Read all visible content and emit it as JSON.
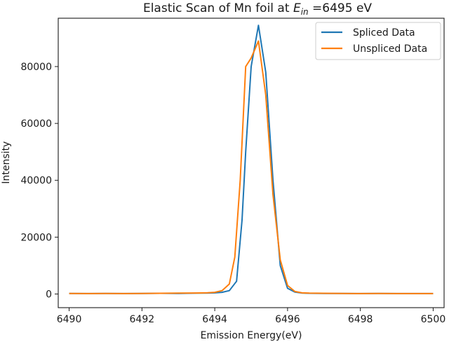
{
  "chart_data": {
    "type": "line",
    "title_main": "Elastic Scan of Mn foil at ",
    "title_var": "E",
    "title_sub": "in",
    "title_tail": " =6495 eV",
    "xlabel": "Emission Energy(eV)",
    "ylabel": "Intensity",
    "xlim": [
      6489.7,
      6500.3
    ],
    "ylim": [
      -4800,
      97000
    ],
    "xticks": [
      6490,
      6492,
      6494,
      6496,
      6498,
      6500
    ],
    "xtick_labels": [
      "6490",
      "6492",
      "6494",
      "6496",
      "6498",
      "6500"
    ],
    "yticks": [
      0,
      20000,
      40000,
      60000,
      80000
    ],
    "ytick_labels": [
      "0",
      "20000",
      "40000",
      "60000",
      "80000"
    ],
    "grid": false,
    "legend_position": "upper right",
    "series": [
      {
        "name": "Spliced Data",
        "color": "#1f77b4",
        "x": [
          6490,
          6490.5,
          6491,
          6491.5,
          6492,
          6492.5,
          6493,
          6493.5,
          6493.8,
          6494,
          6494.2,
          6494.4,
          6494.6,
          6494.75,
          6494.85,
          6495,
          6495.2,
          6495.4,
          6495.6,
          6495.8,
          6496,
          6496.2,
          6496.4,
          6496.6,
          6497,
          6497.5,
          6498,
          6498.5,
          6499,
          6499.5,
          6500
        ],
        "y": [
          200,
          150,
          200,
          150,
          200,
          250,
          200,
          300,
          350,
          400,
          600,
          1200,
          4500,
          26000,
          50000,
          80000,
          94500,
          78000,
          40000,
          10000,
          2000,
          700,
          350,
          250,
          200,
          200,
          150,
          200,
          150,
          150,
          150
        ]
      },
      {
        "name": "Unspliced Data",
        "color": "#ff7f0e",
        "x": [
          6490,
          6490.5,
          6491,
          6491.5,
          6492,
          6492.5,
          6493,
          6493.5,
          6493.8,
          6494,
          6494.2,
          6494.4,
          6494.55,
          6494.7,
          6494.85,
          6495,
          6495.2,
          6495.4,
          6495.6,
          6495.8,
          6496,
          6496.2,
          6496.4,
          6496.6,
          6497,
          6497.5,
          6498,
          6498.5,
          6499,
          6499.5,
          6500
        ],
        "y": [
          200,
          150,
          200,
          150,
          200,
          250,
          300,
          350,
          450,
          600,
          1200,
          3500,
          13000,
          40000,
          80000,
          83000,
          89000,
          70000,
          35000,
          12000,
          3000,
          900,
          400,
          300,
          250,
          200,
          150,
          200,
          150,
          150,
          150
        ]
      }
    ]
  }
}
